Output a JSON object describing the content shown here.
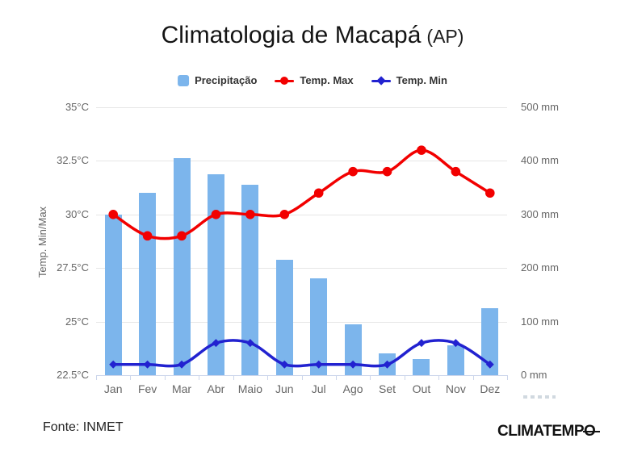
{
  "title": {
    "main": "Climatologia de Macapá",
    "suffix": "(AP)"
  },
  "legend": [
    {
      "label": "Precipitação",
      "marker": "bar-swatch",
      "color": "#7cb5ec"
    },
    {
      "label": "Temp. Max",
      "marker": "line-circle",
      "color": "#f20000"
    },
    {
      "label": "Temp. Min",
      "marker": "line-diamond",
      "color": "#2222d0"
    }
  ],
  "chart_data": {
    "type": "combo",
    "categories": [
      "Jan",
      "Fev",
      "Mar",
      "Abr",
      "Maio",
      "Jun",
      "Jul",
      "Ago",
      "Set",
      "Out",
      "Nov",
      "Dez"
    ],
    "series": [
      {
        "name": "Precipitação",
        "type": "bar",
        "axis": "right",
        "unit": "mm",
        "color": "#7cb5ec",
        "values": [
          300,
          340,
          405,
          375,
          355,
          215,
          180,
          95,
          40,
          30,
          55,
          125
        ]
      },
      {
        "name": "Temp. Max",
        "type": "spline",
        "axis": "left",
        "unit": "°C",
        "color": "#f20000",
        "marker": "circle",
        "values": [
          30,
          29,
          29,
          30,
          30,
          30,
          31,
          32,
          32,
          33,
          32,
          31
        ]
      },
      {
        "name": "Temp. Min",
        "type": "spline",
        "axis": "left",
        "unit": "°C",
        "color": "#2222d0",
        "marker": "diamond",
        "values": [
          23,
          23,
          23,
          24,
          24,
          23,
          23,
          23,
          23,
          24,
          24,
          23
        ]
      }
    ],
    "left_axis": {
      "title": "Temp. Min/Max",
      "min": 22.5,
      "max": 35,
      "ticks": [
        "35°C",
        "32.5°C",
        "30°C",
        "27.5°C",
        "25°C",
        "22.5°C"
      ]
    },
    "right_axis": {
      "title": "",
      "min": 0,
      "max": 500,
      "ticks": [
        "500 mm",
        "400 mm",
        "300 mm",
        "200 mm",
        "100 mm",
        "0 mm"
      ]
    },
    "grid": true,
    "legend_position": "top"
  },
  "footer": {
    "source": "Fonte: INMET",
    "brand_prefix": "CLIMATEMP",
    "brand_o": "O"
  },
  "colors": {
    "bar": "#7cb5ec",
    "temp_max": "#f20000",
    "temp_min": "#2222d0",
    "grid": "#e6e6e6",
    "axis_line": "#ccd6eb",
    "axis_text": "#666666"
  }
}
